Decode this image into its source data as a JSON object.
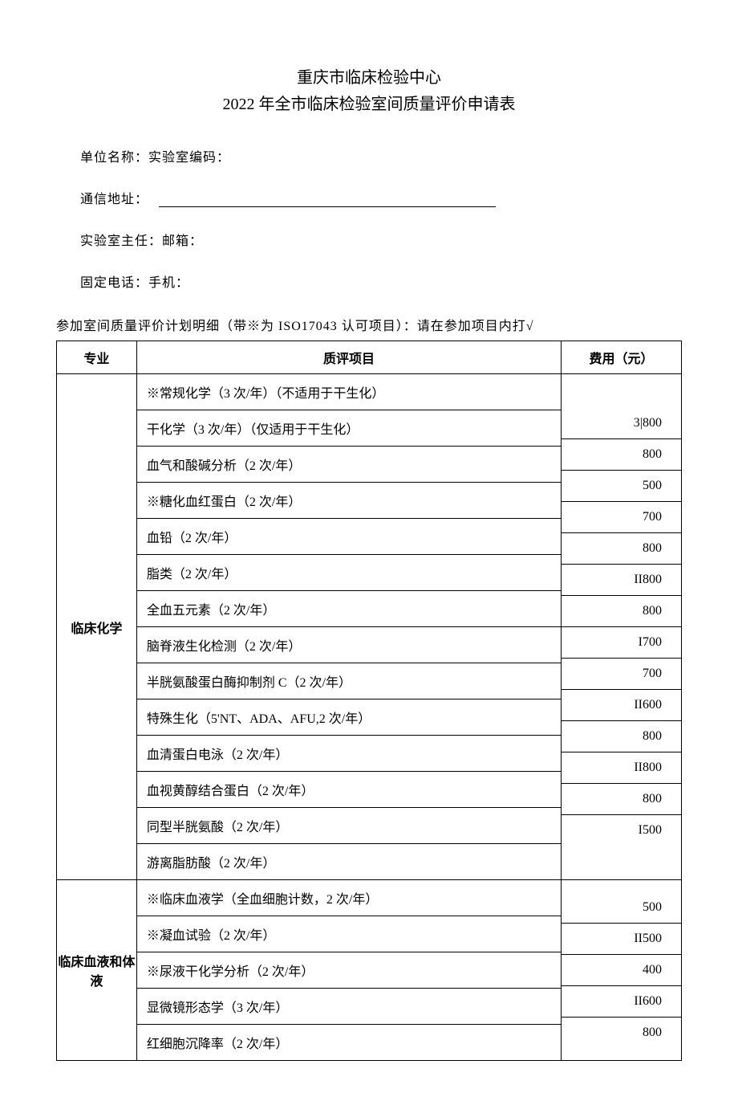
{
  "header": {
    "title_line1": "重庆市临床检验中心",
    "title_line2": "2022 年全市临床检验室间质量评价申请表"
  },
  "form": {
    "field1": "单位名称：实验室编码：",
    "field2_label": "通信地址：",
    "field3": "实验室主任：邮箱：",
    "field4": "固定电话：手机："
  },
  "table_caption": "参加室间质量评价计划明细（带※为 ISO17043 认可项目）：请在参加项目内打√",
  "table": {
    "headers": {
      "col1": "专业",
      "col2": "质评项目",
      "col3": "费用（元）"
    },
    "categories": [
      {
        "name": "临床化学",
        "items": [
          {
            "label": "※常规化学（3 次/年）（不适用于干生化）",
            "fee": "3|800"
          },
          {
            "label": "干化学（3 次/年）（仅适用于干生化）",
            "fee": "800"
          },
          {
            "label": "血气和酸碱分析（2 次/年）",
            "fee": "500"
          },
          {
            "label": "※糖化血红蛋白（2 次/年）",
            "fee": "700"
          },
          {
            "label": "血铅（2 次/年）",
            "fee": "800"
          },
          {
            "label": "脂类（2 次/年）",
            "fee": "II800"
          },
          {
            "label": "全血五元素（2 次/年）",
            "fee": "800"
          },
          {
            "label": "脑脊液生化检测（2 次/年）",
            "fee": "I700"
          },
          {
            "label": "半胱氨酸蛋白酶抑制剂 C（2 次/年）",
            "fee": "700"
          },
          {
            "label": "特殊生化（5'NT、ADA、AFU,2 次/年）",
            "fee": "II600"
          },
          {
            "label": "血清蛋白电泳（2 次/年）",
            "fee": "800"
          },
          {
            "label": "血视黄醇结合蛋白（2 次/年）",
            "fee": "II800"
          },
          {
            "label": "同型半胱氨酸（2 次/年）",
            "fee": "800"
          },
          {
            "label": "游离脂肪酸（2 次/年）",
            "fee": "I500"
          }
        ]
      },
      {
        "name": "临床血液和体液",
        "items": [
          {
            "label": "※临床血液学（全血细胞计数，2 次/年）",
            "fee": "500"
          },
          {
            "label": "※凝血试验（2 次/年）",
            "fee": "II500"
          },
          {
            "label": "※尿液干化学分析（2 次/年）",
            "fee": "400"
          },
          {
            "label": "显微镜形态学（3 次/年）",
            "fee": "II600"
          },
          {
            "label": "红细胞沉降率（2 次/年）",
            "fee": "800"
          }
        ]
      }
    ]
  }
}
